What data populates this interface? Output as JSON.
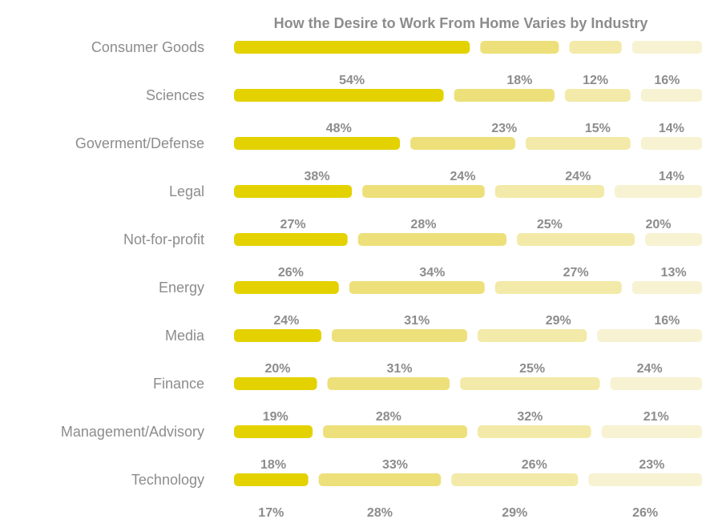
{
  "chart_data": {
    "type": "bar",
    "stacked": true,
    "orientation": "horizontal",
    "title": "How the Desire to Work From Home Varies by Industry",
    "categories": [
      "Consumer Goods",
      "Sciences",
      "Goverment/Defense",
      "Legal",
      "Not-for-profit",
      "Energy",
      "Media",
      "Finance",
      "Management/Advisory",
      "Technology"
    ],
    "series": [
      {
        "values": [
          54,
          48,
          38,
          27,
          26,
          24,
          20,
          19,
          18,
          17
        ],
        "color": "#e3d200"
      },
      {
        "values": [
          18,
          23,
          24,
          28,
          34,
          31,
          31,
          28,
          33,
          28
        ],
        "color": "#ede07a"
      },
      {
        "values": [
          12,
          15,
          24,
          25,
          27,
          29,
          25,
          32,
          26,
          29
        ],
        "color": "#f3eaa9"
      },
      {
        "values": [
          16,
          14,
          14,
          20,
          13,
          16,
          24,
          21,
          23,
          26
        ],
        "color": "#f7f2d2"
      }
    ],
    "value_suffix": "%",
    "grid": false,
    "legend": "none"
  }
}
